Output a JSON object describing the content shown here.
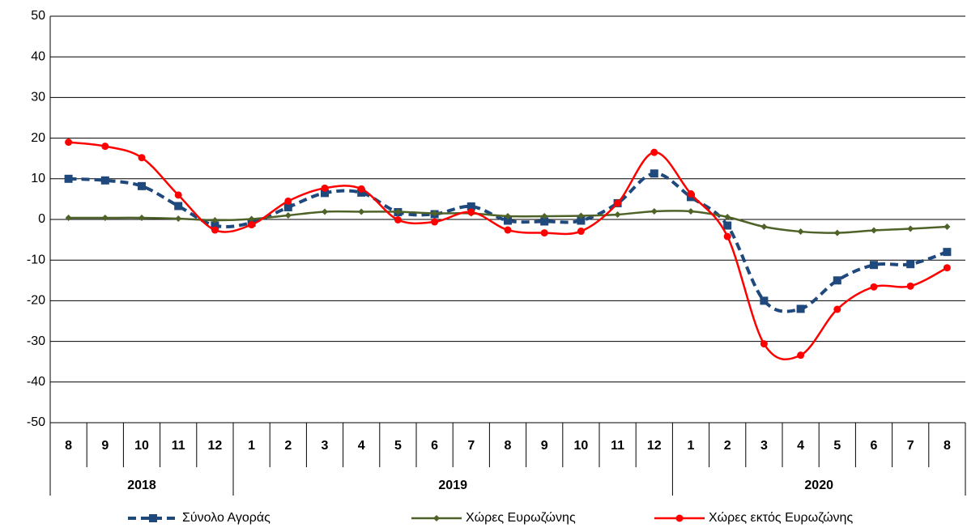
{
  "chart_data": {
    "type": "line",
    "category_groups": [
      {
        "name": "2018",
        "categories": [
          "8",
          "9",
          "10",
          "11",
          "12"
        ]
      },
      {
        "name": "2019",
        "categories": [
          "1",
          "2",
          "3",
          "4",
          "5",
          "6",
          "7",
          "8",
          "9",
          "10",
          "11",
          "12"
        ]
      },
      {
        "name": "2020",
        "categories": [
          "1",
          "2",
          "3",
          "4",
          "5",
          "6",
          "7",
          "8"
        ]
      }
    ],
    "series": [
      {
        "name": "Σύνολο Αγοράς",
        "color": "#1f497d",
        "dashed": true,
        "marker": "square",
        "values": [
          10,
          9.6,
          8.2,
          3.3,
          -1.5,
          -0.8,
          3,
          6.5,
          6.6,
          1.8,
          1.3,
          3.2,
          -0.3,
          -0.5,
          -0.3,
          4,
          11.3,
          5.5,
          -1.5,
          -20,
          -22,
          -15,
          -11.2,
          -11,
          -8
        ]
      },
      {
        "name": "Χώρες Ευρωζώνης",
        "color": "#4f6228",
        "dashed": false,
        "marker": "diamond",
        "values": [
          0.4,
          0.4,
          0.4,
          0.2,
          -0.2,
          0.1,
          1,
          1.9,
          1.9,
          1.9,
          1.5,
          1.5,
          0.8,
          0.8,
          0.9,
          1.2,
          2,
          2,
          0.6,
          -1.8,
          -3,
          -3.3,
          -2.7,
          -2.3,
          -1.8
        ]
      },
      {
        "name": "Χώρες εκτός Ευρωζώνης",
        "color": "#ff0000",
        "dashed": false,
        "marker": "circle",
        "values": [
          19,
          18,
          15.2,
          6,
          -2.6,
          -1.3,
          4.5,
          7.7,
          7.5,
          -0.1,
          -0.6,
          1.8,
          -2.6,
          -3.3,
          -2.9,
          4,
          16.5,
          6.3,
          -4.2,
          -30.6,
          -33.4,
          -22.1,
          -16.6,
          -16.4,
          -11.9
        ]
      }
    ],
    "ylim": [
      -50,
      50
    ],
    "yticks": [
      -50,
      -40,
      -30,
      -20,
      -10,
      0,
      10,
      20,
      30,
      40,
      50
    ],
    "grid": true,
    "legend": "bottom"
  }
}
